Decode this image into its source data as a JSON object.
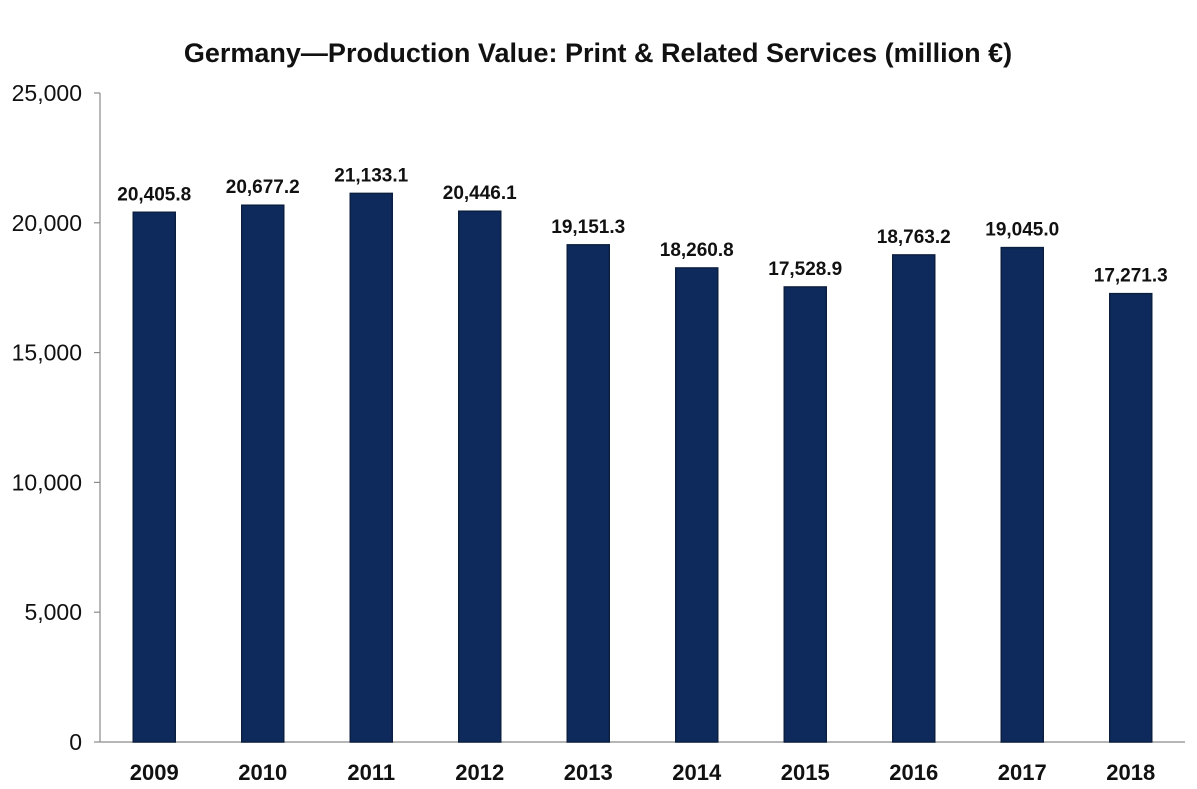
{
  "chart_data": {
    "type": "bar",
    "title": "Germany—Production Value: Print & Related Services (million €)",
    "xlabel": "",
    "ylabel": "",
    "categories": [
      "2009",
      "2010",
      "2011",
      "2012",
      "2013",
      "2014",
      "2015",
      "2016",
      "2017",
      "2018"
    ],
    "values": [
      20405.8,
      20677.2,
      21133.1,
      20446.1,
      19151.3,
      18260.8,
      17528.9,
      18763.2,
      19045.0,
      17271.3
    ],
    "data_labels": [
      "20,405.8",
      "20,677.2",
      "21,133.1",
      "20,446.1",
      "19,151.3",
      "18,260.8",
      "17,528.9",
      "18,763.2",
      "19,045.0",
      "17,271.3"
    ],
    "ylim": [
      0,
      25000
    ],
    "yticks": [
      0,
      5000,
      10000,
      15000,
      20000,
      25000
    ],
    "ytick_labels": [
      "0",
      "5,000",
      "10,000",
      "15,000",
      "20,000",
      "25,000"
    ],
    "grid": false,
    "legend": "none",
    "bar_color": "#0e2a5c"
  }
}
